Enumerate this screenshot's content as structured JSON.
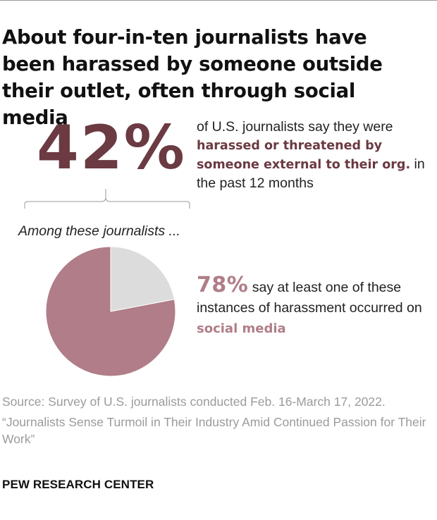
{
  "title": "About four-in-ten journalists have been harassed by someone outside their outlet, often through social media",
  "headline_stat": {
    "value": "42%",
    "text_before": "of U.S. journalists say they were",
    "highlight": "harassed or threatened by someone external to their org.",
    "text_after": "in the past 12 months"
  },
  "subgroup_label": "Among these journalists ...",
  "pie_stat": {
    "value": "78%",
    "text_before": "say at least one of these instances of harassment occurred on",
    "highlight": "social media"
  },
  "source": "Source: Survey of U.S. journalists conducted Feb. 16-March 17, 2022.",
  "report": "“Journalists Sense Turmoil in Their Industry Amid Continued Passion for Their Work”",
  "org": "PEW RESEARCH CENTER",
  "colors": {
    "dark_accent": "#6b3a42",
    "light_accent": "#b07d88",
    "pie_main": "#b07d88",
    "pie_rest": "#dcdcdc"
  },
  "chart_data": {
    "type": "pie",
    "categories": [
      "Occurred on social media",
      "Other"
    ],
    "values": [
      78,
      22
    ],
    "title": "",
    "xlabel": "",
    "ylabel": ""
  }
}
